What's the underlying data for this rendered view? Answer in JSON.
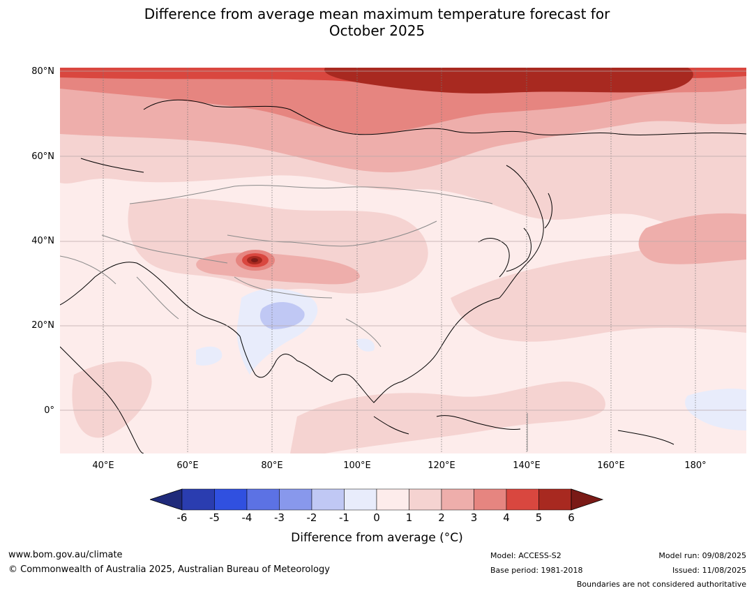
{
  "title_line1": "Difference from average mean maximum temperature forecast for",
  "title_line2": "October 2025",
  "lat_labels": [
    "80°N",
    "60°N",
    "40°N",
    "20°N",
    "0°"
  ],
  "lon_labels": [
    "40°E",
    "60°E",
    "80°E",
    "100°E",
    "120°E",
    "140°E",
    "160°E",
    "180°"
  ],
  "colorbar": {
    "ticks": [
      "-6",
      "-5",
      "-4",
      "-3",
      "-2",
      "-1",
      "0",
      "1",
      "2",
      "3",
      "4",
      "5",
      "6"
    ],
    "colors": [
      "#1f2a7a",
      "#2a3db0",
      "#3050e0",
      "#5c72e4",
      "#8898ec",
      "#c0c8f4",
      "#e8ecfb",
      "#fdeceb",
      "#f5d3d1",
      "#eeaeab",
      "#e68580",
      "#d9473f",
      "#a82920",
      "#7a1a16"
    ],
    "label": "Difference from average (°C)"
  },
  "footer": {
    "url": "www.bom.gov.au/climate",
    "copyright": "© Commonwealth of Australia 2025, Australian Bureau of Meteorology",
    "model": "Model: ACCESS-S2",
    "base_period": "Base period: 1981-2018",
    "model_run": "Model run: 09/08/2025",
    "issued": "Issued: 11/08/2025",
    "disclaimer": "Boundaries are not considered authoritative"
  }
}
